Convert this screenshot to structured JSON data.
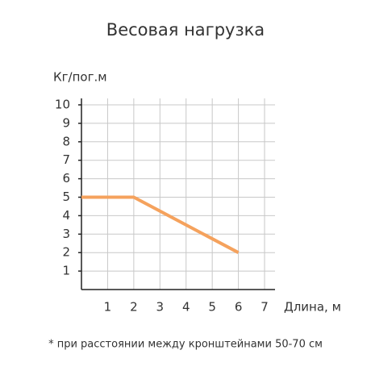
{
  "chart_data": {
    "type": "line",
    "title": "Весовая нагрузка",
    "ylabel": "Кг/пог.м",
    "xlabel": "Длина, м",
    "note": "* при расстоянии между кронштейнами 50-70 см",
    "x": [
      0,
      2,
      6
    ],
    "series": [
      {
        "name": "Весовая нагрузка",
        "color": "#f5a25d",
        "values": [
          5,
          5,
          2
        ]
      }
    ],
    "xlim": [
      0,
      7.4
    ],
    "ylim": [
      0,
      10.35
    ],
    "xticks": [
      1,
      2,
      3,
      4,
      5,
      6,
      7
    ],
    "yticks": [
      1,
      2,
      3,
      4,
      5,
      6,
      7,
      8,
      9,
      10
    ],
    "grid": true
  }
}
